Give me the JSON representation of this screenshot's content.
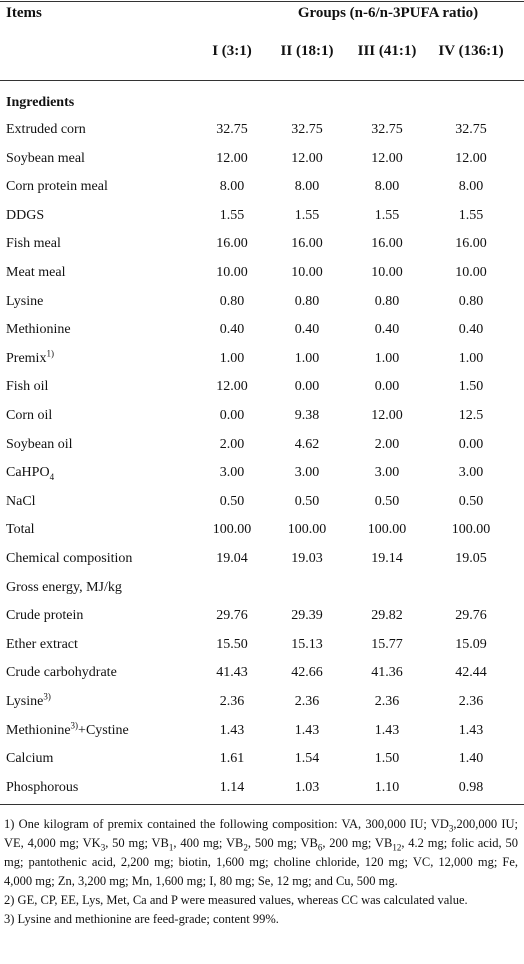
{
  "table": {
    "header": {
      "items": "Items",
      "groups": "Groups (n-6/n-3PUFA ratio)",
      "columns": [
        "I (3:1)",
        "II (18:1)",
        "III (41:1)",
        "IV (136:1)"
      ]
    },
    "section": "Ingredients",
    "rows": [
      {
        "label": [
          {
            "t": "Extruded corn"
          }
        ],
        "values": [
          "32.75",
          "32.75",
          "32.75",
          "32.75"
        ]
      },
      {
        "label": [
          {
            "t": "Soybean meal"
          }
        ],
        "values": [
          "12.00",
          "12.00",
          "12.00",
          "12.00"
        ]
      },
      {
        "label": [
          {
            "t": "Corn protein meal"
          }
        ],
        "values": [
          "8.00",
          "8.00",
          "8.00",
          "8.00"
        ]
      },
      {
        "label": [
          {
            "t": "DDGS"
          }
        ],
        "values": [
          "1.55",
          "1.55",
          "1.55",
          "1.55"
        ]
      },
      {
        "label": [
          {
            "t": "Fish meal"
          }
        ],
        "values": [
          "16.00",
          "16.00",
          "16.00",
          "16.00"
        ]
      },
      {
        "label": [
          {
            "t": "Meat meal"
          }
        ],
        "values": [
          "10.00",
          "10.00",
          "10.00",
          "10.00"
        ]
      },
      {
        "label": [
          {
            "t": "Lysine"
          }
        ],
        "values": [
          "0.80",
          "0.80",
          "0.80",
          "0.80"
        ]
      },
      {
        "label": [
          {
            "t": "Methionine"
          }
        ],
        "values": [
          "0.40",
          "0.40",
          "0.40",
          "0.40"
        ]
      },
      {
        "label": [
          {
            "t": "Premix"
          },
          {
            "sup": "1)"
          }
        ],
        "values": [
          "1.00",
          "1.00",
          "1.00",
          "1.00"
        ]
      },
      {
        "label": [
          {
            "t": "Fish oil"
          }
        ],
        "values": [
          "12.00",
          "0.00",
          "0.00",
          "1.50"
        ]
      },
      {
        "label": [
          {
            "t": "Corn oil"
          }
        ],
        "values": [
          "0.00",
          "9.38",
          "12.00",
          "12.5"
        ]
      },
      {
        "label": [
          {
            "t": "Soybean oil"
          }
        ],
        "values": [
          "2.00",
          "4.62",
          "2.00",
          "0.00"
        ]
      },
      {
        "label": [
          {
            "t": "CaHPO"
          },
          {
            "sub": "4"
          }
        ],
        "values": [
          "3.00",
          "3.00",
          "3.00",
          "3.00"
        ]
      },
      {
        "label": [
          {
            "t": "NaCl"
          }
        ],
        "values": [
          "0.50",
          "0.50",
          "0.50",
          "0.50"
        ]
      },
      {
        "label": [
          {
            "t": "Total"
          }
        ],
        "values": [
          "100.00",
          "100.00",
          "100.00",
          "100.00"
        ]
      },
      {
        "label": [
          {
            "t": "Chemical composition"
          }
        ],
        "values": [
          "19.04",
          "19.03",
          "19.14",
          "19.05"
        ]
      },
      {
        "label": [
          {
            "t": "Gross energy, MJ/kg"
          }
        ],
        "values": []
      },
      {
        "label": [
          {
            "t": "Crude protein"
          }
        ],
        "values": [
          "29.76",
          "29.39",
          "29.82",
          "29.76"
        ]
      },
      {
        "label": [
          {
            "t": "Ether extract"
          }
        ],
        "values": [
          "15.50",
          "15.13",
          "15.77",
          "15.09"
        ]
      },
      {
        "label": [
          {
            "t": "Crude carbohydrate"
          }
        ],
        "values": [
          "41.43",
          "42.66",
          "41.36",
          "42.44"
        ]
      },
      {
        "label": [
          {
            "t": "Lysine"
          },
          {
            "sup": "3)"
          }
        ],
        "values": [
          "2.36",
          "2.36",
          "2.36",
          "2.36"
        ]
      },
      {
        "label": [
          {
            "t": "Methionine"
          },
          {
            "sup": "3)"
          },
          {
            "t": "+Cystine"
          }
        ],
        "values": [
          "1.43",
          "1.43",
          "1.43",
          "1.43"
        ]
      },
      {
        "label": [
          {
            "t": "Calcium"
          }
        ],
        "values": [
          "1.61",
          "1.54",
          "1.50",
          "1.40"
        ]
      },
      {
        "label": [
          {
            "t": "Phosphorous"
          }
        ],
        "values": [
          "1.14",
          "1.03",
          "1.10",
          "0.98"
        ]
      }
    ]
  },
  "footnotes": [
    [
      {
        "t": "1) One kilogram of premix contained the following composition: VA, 300,000 IU; VD"
      },
      {
        "sub": "3"
      },
      {
        "t": ",200,000 IU; VE, 4,000 mg; VK"
      },
      {
        "sub": "3"
      },
      {
        "t": ", 50 mg; VB"
      },
      {
        "sub": "1"
      },
      {
        "t": ", 400 mg; VB"
      },
      {
        "sub": "2"
      },
      {
        "t": ", 500 mg; VB"
      },
      {
        "sub": "6"
      },
      {
        "t": ", 200 mg; VB"
      },
      {
        "sub": "12"
      },
      {
        "t": ", 4.2 mg; folic acid, 50 mg; pantothenic acid, 2,200 mg; biotin, 1,600 mg; choline chloride, 120 mg; VC, 12,000 mg; Fe, 4,000 mg; Zn, 3,200 mg; Mn, 1,600 mg; I, 80 mg; Se, 12 mg; and Cu, 500 mg."
      }
    ],
    [
      {
        "t": "2) GE, CP, EE, Lys, Met, Ca and P were measured values, whereas CC was calculated value."
      }
    ],
    [
      {
        "t": "3) Lysine and methionine are feed-grade; content 99%."
      }
    ]
  ]
}
